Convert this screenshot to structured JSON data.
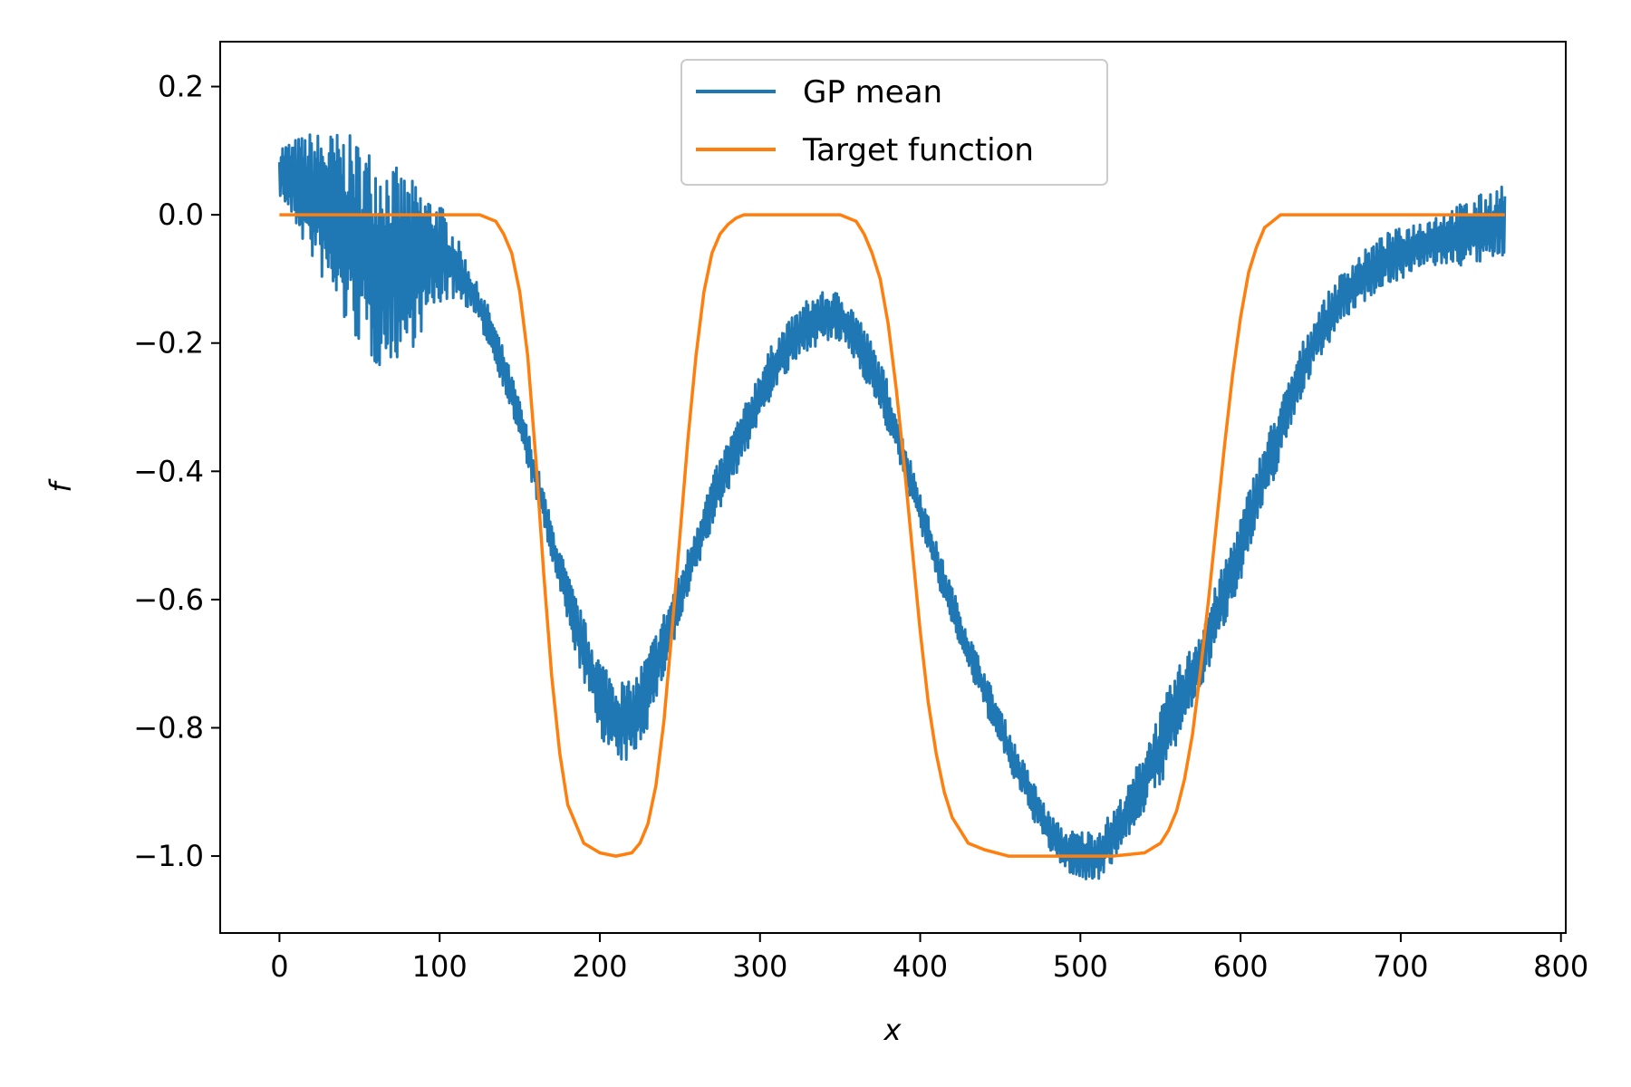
{
  "chart_data": {
    "type": "line",
    "title": "",
    "xlabel": "x",
    "ylabel": "f",
    "xlim": [
      -37,
      803
    ],
    "ylim": [
      -1.12,
      0.27
    ],
    "grid": false,
    "legend_position": "top-center",
    "x_ticks": [
      {
        "value": 0,
        "label": "0"
      },
      {
        "value": 100,
        "label": "100"
      },
      {
        "value": 200,
        "label": "200"
      },
      {
        "value": 300,
        "label": "300"
      },
      {
        "value": 400,
        "label": "400"
      },
      {
        "value": 500,
        "label": "500"
      },
      {
        "value": 600,
        "label": "600"
      },
      {
        "value": 700,
        "label": "700"
      },
      {
        "value": 800,
        "label": "800"
      }
    ],
    "y_ticks": [
      {
        "value": 0.2,
        "label": "0.2"
      },
      {
        "value": 0.0,
        "label": "0.0"
      },
      {
        "value": -0.2,
        "label": "−0.2"
      },
      {
        "value": -0.4,
        "label": "−0.4"
      },
      {
        "value": -0.6,
        "label": "−0.6"
      },
      {
        "value": -0.8,
        "label": "−0.8"
      },
      {
        "value": -1.0,
        "label": "−1.0"
      }
    ],
    "series": [
      {
        "name": "GP mean",
        "color": "#1f77b4",
        "x": [
          0,
          20,
          40,
          60,
          80,
          100,
          110,
          120,
          130,
          140,
          150,
          160,
          170,
          180,
          190,
          200,
          210,
          220,
          230,
          240,
          250,
          260,
          270,
          280,
          290,
          300,
          310,
          320,
          330,
          340,
          350,
          360,
          370,
          380,
          390,
          400,
          410,
          420,
          430,
          440,
          450,
          460,
          470,
          480,
          490,
          500,
          510,
          520,
          530,
          540,
          550,
          560,
          570,
          580,
          590,
          600,
          610,
          620,
          630,
          640,
          650,
          660,
          670,
          680,
          690,
          700,
          720,
          740,
          765
        ],
        "y": [
          0.07,
          0.03,
          -0.02,
          -0.07,
          -0.08,
          -0.06,
          -0.08,
          -0.12,
          -0.17,
          -0.24,
          -0.32,
          -0.41,
          -0.51,
          -0.6,
          -0.68,
          -0.75,
          -0.79,
          -0.79,
          -0.74,
          -0.67,
          -0.6,
          -0.52,
          -0.45,
          -0.39,
          -0.34,
          -0.28,
          -0.23,
          -0.2,
          -0.17,
          -0.16,
          -0.16,
          -0.19,
          -0.24,
          -0.3,
          -0.38,
          -0.46,
          -0.54,
          -0.61,
          -0.68,
          -0.74,
          -0.8,
          -0.86,
          -0.91,
          -0.96,
          -0.99,
          -1.0,
          -1.0,
          -0.97,
          -0.93,
          -0.88,
          -0.83,
          -0.77,
          -0.72,
          -0.66,
          -0.59,
          -0.52,
          -0.44,
          -0.37,
          -0.3,
          -0.23,
          -0.18,
          -0.14,
          -0.11,
          -0.09,
          -0.07,
          -0.06,
          -0.04,
          -0.03,
          -0.01
        ],
        "noise_amplitude": [
          0.04,
          0.1,
          0.15,
          0.17,
          0.14,
          0.08,
          0.05,
          0.03,
          0.03,
          0.03,
          0.03,
          0.03,
          0.03,
          0.04,
          0.05,
          0.06,
          0.07,
          0.06,
          0.06,
          0.05,
          0.04,
          0.04,
          0.04,
          0.04,
          0.04,
          0.04,
          0.04,
          0.04,
          0.04,
          0.04,
          0.04,
          0.04,
          0.04,
          0.04,
          0.03,
          0.03,
          0.03,
          0.03,
          0.03,
          0.03,
          0.03,
          0.03,
          0.03,
          0.03,
          0.03,
          0.04,
          0.04,
          0.04,
          0.04,
          0.05,
          0.06,
          0.06,
          0.05,
          0.05,
          0.05,
          0.05,
          0.05,
          0.05,
          0.04,
          0.04,
          0.04,
          0.04,
          0.04,
          0.04,
          0.04,
          0.04,
          0.04,
          0.05,
          0.06
        ]
      },
      {
        "name": "Target function",
        "color": "#ff7f0e",
        "x": [
          0,
          125,
          135,
          140,
          145,
          150,
          155,
          160,
          165,
          170,
          175,
          180,
          190,
          200,
          210,
          220,
          225,
          230,
          235,
          240,
          245,
          250,
          255,
          260,
          265,
          270,
          275,
          280,
          285,
          290,
          300,
          350,
          360,
          365,
          370,
          375,
          380,
          385,
          390,
          395,
          400,
          405,
          410,
          415,
          420,
          425,
          430,
          440,
          455,
          480,
          520,
          540,
          550,
          555,
          560,
          565,
          570,
          575,
          580,
          585,
          590,
          595,
          600,
          605,
          610,
          615,
          620,
          625,
          635,
          765
        ],
        "y": [
          0,
          0,
          -0.01,
          -0.03,
          -0.06,
          -0.12,
          -0.22,
          -0.38,
          -0.56,
          -0.72,
          -0.84,
          -0.92,
          -0.98,
          -0.995,
          -1.0,
          -0.995,
          -0.98,
          -0.95,
          -0.89,
          -0.79,
          -0.65,
          -0.5,
          -0.35,
          -0.22,
          -0.12,
          -0.06,
          -0.03,
          -0.015,
          -0.005,
          0,
          0,
          0,
          -0.01,
          -0.03,
          -0.06,
          -0.1,
          -0.17,
          -0.27,
          -0.39,
          -0.52,
          -0.65,
          -0.76,
          -0.84,
          -0.9,
          -0.94,
          -0.96,
          -0.98,
          -0.99,
          -1.0,
          -1.0,
          -1.0,
          -0.995,
          -0.98,
          -0.96,
          -0.93,
          -0.88,
          -0.81,
          -0.71,
          -0.6,
          -0.48,
          -0.36,
          -0.25,
          -0.16,
          -0.09,
          -0.05,
          -0.02,
          -0.01,
          0,
          0,
          0
        ]
      }
    ]
  }
}
